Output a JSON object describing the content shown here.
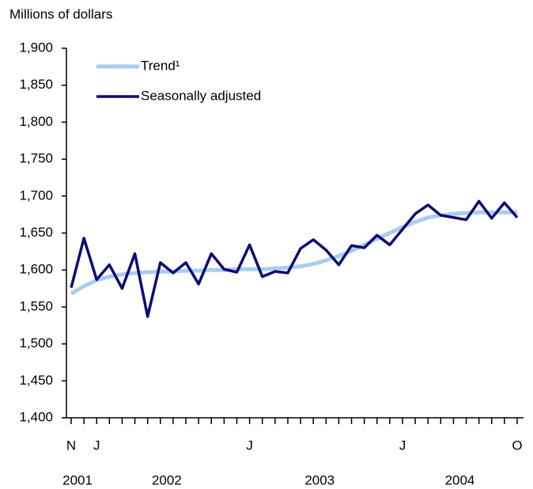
{
  "chart_data": {
    "type": "line",
    "y_axis_label": "Millions of dollars",
    "categories": [
      "N",
      null,
      "J",
      null,
      null,
      null,
      null,
      null,
      null,
      null,
      null,
      null,
      null,
      null,
      "J",
      null,
      null,
      null,
      null,
      null,
      null,
      null,
      null,
      null,
      null,
      null,
      "J",
      null,
      null,
      null,
      null,
      null,
      null,
      null,
      null,
      "O"
    ],
    "year_labels": [
      "2001",
      "2002",
      "2003",
      "2004"
    ],
    "series": [
      {
        "name": "Trend¹",
        "color": "#a9cdf2",
        "values": [
          1568,
          1578,
          1586,
          1591,
          1594,
          1596,
          1597,
          1598,
          1598,
          1599,
          1599,
          1600,
          1600,
          1601,
          1601,
          1601,
          1602,
          1603,
          1605,
          1608,
          1613,
          1619,
          1626,
          1634,
          1642,
          1650,
          1658,
          1665,
          1671,
          1674,
          1676,
          1677,
          1678,
          1678,
          1678,
          1678
        ]
      },
      {
        "name": "Seasonally adjusted",
        "color": "#0c0c72",
        "values": [
          1576,
          1643,
          1587,
          1607,
          1575,
          1622,
          1537,
          1610,
          1596,
          1610,
          1581,
          1622,
          1601,
          1597,
          1634,
          1591,
          1598,
          1596,
          1629,
          1641,
          1627,
          1607,
          1633,
          1630,
          1647,
          1634,
          1655,
          1676,
          1688,
          1674,
          1671,
          1668,
          1693,
          1670,
          1691,
          1671
        ]
      }
    ],
    "ylim": [
      1400,
      1900
    ],
    "yticks": [
      {
        "value": 1400,
        "label": "1,400"
      },
      {
        "value": 1450,
        "label": "1,450"
      },
      {
        "value": 1500,
        "label": "1,500"
      },
      {
        "value": 1550,
        "label": "1,550"
      },
      {
        "value": 1600,
        "label": "1,600"
      },
      {
        "value": 1650,
        "label": "1,650"
      },
      {
        "value": 1700,
        "label": "1,700"
      },
      {
        "value": 1750,
        "label": "1,750"
      },
      {
        "value": 1800,
        "label": "1,800"
      },
      {
        "value": 1850,
        "label": "1,850"
      },
      {
        "value": 1900,
        "label": "1,900"
      }
    ],
    "legend": "top-left",
    "grid": false
  }
}
